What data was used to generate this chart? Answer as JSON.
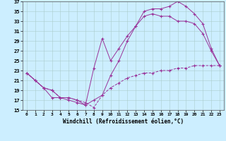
{
  "xlabel": "Windchill (Refroidissement éolien,°C)",
  "ylabel": "",
  "background_color": "#cceeff",
  "grid_color": "#aacccc",
  "line_color": "#993399",
  "xlim": [
    -0.5,
    23.5
  ],
  "ylim": [
    15,
    37
  ],
  "yticks": [
    15,
    17,
    19,
    21,
    23,
    25,
    27,
    29,
    31,
    33,
    35,
    37
  ],
  "xticks": [
    0,
    1,
    2,
    3,
    4,
    5,
    6,
    7,
    8,
    9,
    10,
    11,
    12,
    13,
    14,
    15,
    16,
    17,
    18,
    19,
    20,
    21,
    22,
    23
  ],
  "line1_x": [
    0,
    1,
    2,
    3,
    4,
    5,
    6,
    7,
    8,
    9,
    10,
    11,
    12,
    13,
    14,
    15,
    16,
    17,
    18,
    19,
    20,
    21,
    22,
    23
  ],
  "line1_y": [
    22.5,
    21.0,
    19.5,
    19.0,
    17.5,
    17.5,
    17.0,
    16.5,
    15.5,
    18.0,
    19.5,
    20.5,
    21.5,
    22.0,
    22.5,
    22.5,
    23.0,
    23.0,
    23.5,
    23.5,
    24.0,
    24.0,
    24.0,
    24.0
  ],
  "line2_x": [
    0,
    1,
    2,
    3,
    4,
    5,
    6,
    7,
    8,
    9,
    10,
    11,
    12,
    13,
    14,
    15,
    16,
    17,
    18,
    19,
    20,
    21,
    22,
    23
  ],
  "line2_y": [
    22.5,
    21.0,
    19.5,
    19.0,
    17.5,
    17.5,
    17.0,
    16.0,
    23.5,
    29.5,
    25.0,
    27.5,
    30.0,
    32.0,
    34.0,
    34.5,
    34.0,
    34.0,
    33.0,
    33.0,
    32.5,
    30.5,
    27.0,
    24.0
  ],
  "line3_x": [
    0,
    1,
    2,
    3,
    4,
    5,
    6,
    7,
    8,
    9,
    10,
    11,
    12,
    13,
    14,
    15,
    16,
    17,
    18,
    19,
    20,
    21,
    22,
    23
  ],
  "line3_y": [
    22.5,
    21.0,
    19.5,
    17.5,
    17.5,
    17.0,
    16.5,
    16.0,
    17.0,
    18.0,
    22.0,
    25.0,
    29.0,
    32.0,
    35.0,
    35.5,
    35.5,
    36.0,
    37.0,
    36.0,
    34.5,
    32.5,
    27.5,
    24.0
  ]
}
